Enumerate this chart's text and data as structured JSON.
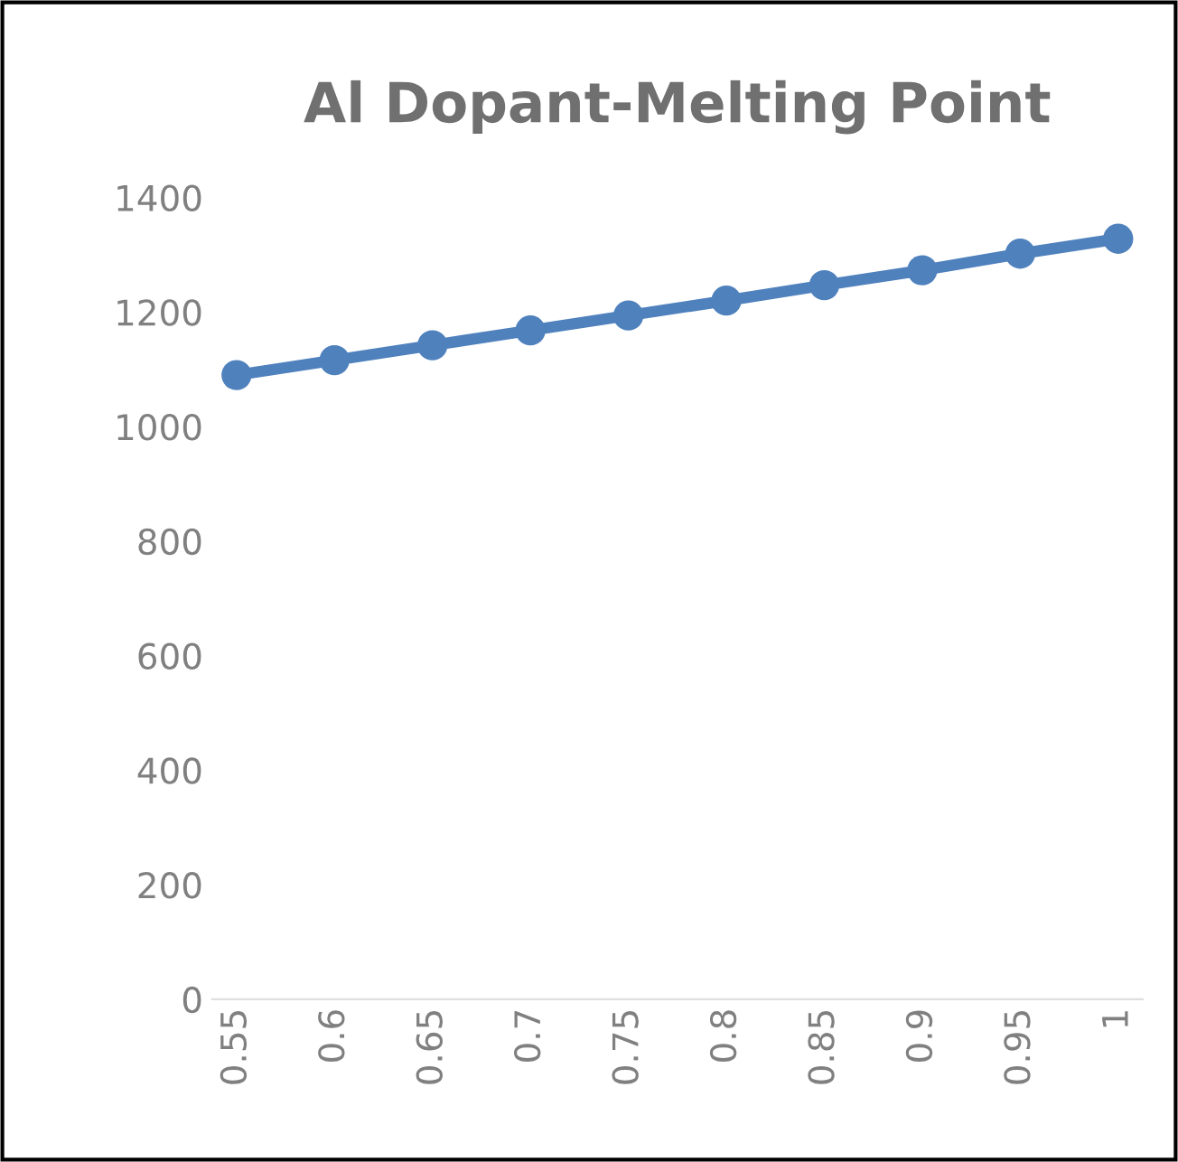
{
  "chart_data": {
    "type": "line",
    "title": "Al Dopant-Melting Point",
    "categories": [
      "0.55",
      "0.6",
      "0.65",
      "0.7",
      "0.75",
      "0.8",
      "0.85",
      "0.9",
      "0.95",
      "1"
    ],
    "series": [
      {
        "color": "#4f81bd",
        "values": [
          1090,
          1116,
          1142,
          1168,
          1194,
          1220,
          1247,
          1273,
          1302,
          1328
        ]
      }
    ],
    "ylim": [
      0,
      1400
    ],
    "yticks": [
      0,
      200,
      400,
      600,
      800,
      1000,
      1200,
      1400
    ],
    "grid": false,
    "marker": "circle",
    "line_style": "solid",
    "legend": false
  }
}
